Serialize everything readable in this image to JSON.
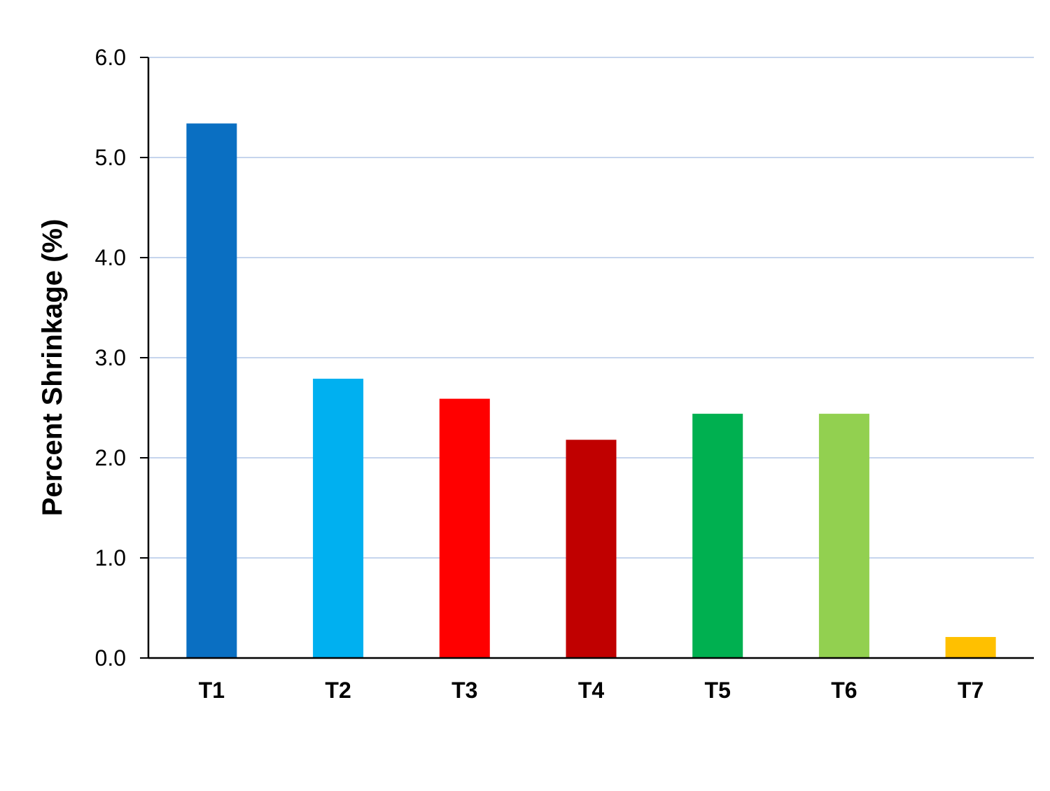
{
  "chart_data": {
    "type": "bar",
    "title": "",
    "xlabel": "",
    "ylabel": "Percent Shrinkage (%)",
    "categories": [
      "T1",
      "T2",
      "T3",
      "T4",
      "T5",
      "T6",
      "T7"
    ],
    "values": [
      5.34,
      2.79,
      2.59,
      2.18,
      2.44,
      2.44,
      0.21
    ],
    "colors": [
      "#0a6fc2",
      "#00b0f0",
      "#ff0000",
      "#c00000",
      "#00b050",
      "#92d050",
      "#ffc000"
    ],
    "ylim": [
      0,
      6
    ],
    "yticks": [
      "0.0",
      "1.0",
      "2.0",
      "3.0",
      "4.0",
      "5.0",
      "6.0"
    ],
    "grid": true,
    "gridColor": "#b4c7e7",
    "legend": "none"
  }
}
